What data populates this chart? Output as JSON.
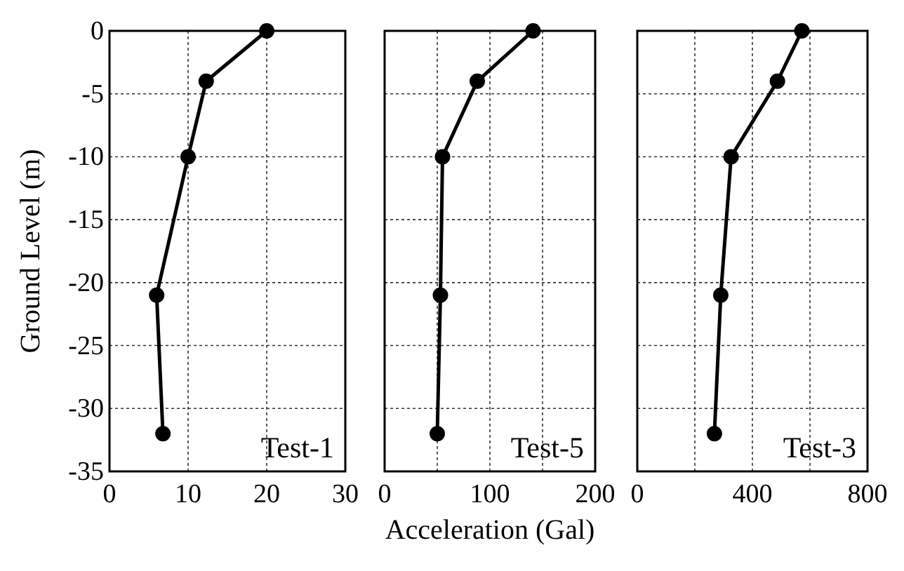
{
  "chart_data": [
    {
      "type": "line",
      "ylabel": "Ground Level (m)",
      "xlim": [
        0,
        30
      ],
      "xticks": [
        0,
        10,
        20,
        30
      ],
      "ylim": [
        -35,
        0
      ],
      "yticks": [
        0,
        -5,
        -10,
        -15,
        -20,
        -25,
        -30,
        -35
      ],
      "grid": true,
      "marker": "circle",
      "line_style": "solid",
      "annotations": [
        "Test-1"
      ],
      "series": [
        {
          "color": "#000000",
          "x": [
            20,
            12.3,
            10,
            6,
            6.8
          ],
          "values": [
            0,
            -4,
            -10,
            -21,
            -32
          ]
        }
      ]
    },
    {
      "type": "line",
      "xlabel": "Acceleration (Gal)",
      "xlim": [
        0,
        200
      ],
      "xticks": [
        0,
        {
          "value": 50,
          "label": null
        },
        100,
        {
          "value": 150,
          "label": null
        },
        200
      ],
      "ylim": [
        -35,
        0
      ],
      "yticks": [
        0,
        -5,
        -10,
        -15,
        -20,
        -25,
        -30,
        -35
      ],
      "tick_labels": "x",
      "grid": true,
      "marker": "circle",
      "line_style": "solid",
      "annotations": [
        "Test-5"
      ],
      "series": [
        {
          "color": "#000000",
          "x": [
            141,
            88,
            55,
            53,
            50
          ],
          "values": [
            0,
            -4,
            -10,
            -21,
            -32
          ]
        }
      ]
    },
    {
      "type": "line",
      "xlim": [
        0,
        800
      ],
      "xticks": [
        0,
        {
          "value": 200,
          "label": null
        },
        400,
        {
          "value": 600,
          "label": null
        },
        800
      ],
      "ylim": [
        -35,
        0
      ],
      "yticks": [
        0,
        -5,
        -10,
        -15,
        -20,
        -25,
        -30,
        -35
      ],
      "tick_labels": "x",
      "grid": true,
      "marker": "circle",
      "line_style": "solid",
      "annotations": [
        "Test-3"
      ],
      "series": [
        {
          "color": "#000000",
          "x": [
            572,
            487,
            326,
            290,
            268
          ],
          "values": [
            0,
            -4,
            -10,
            -21,
            -32
          ]
        }
      ]
    }
  ]
}
